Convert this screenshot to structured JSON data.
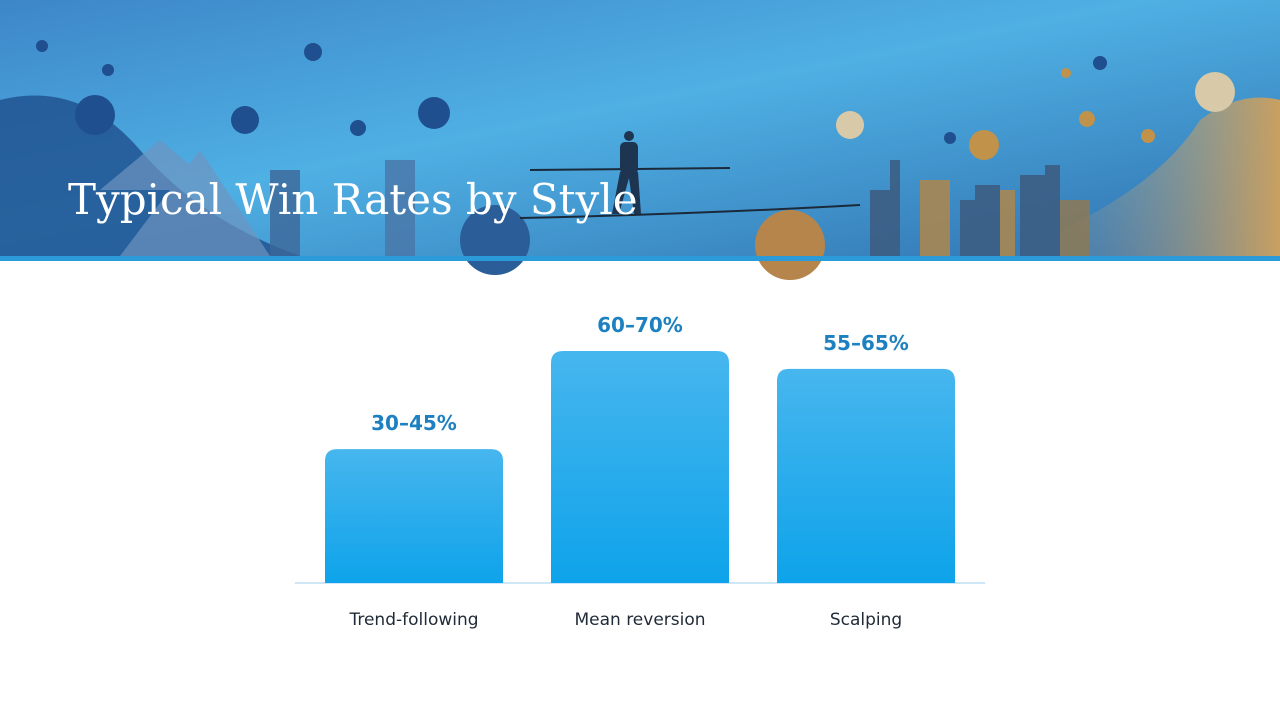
{
  "chart_data": {
    "type": "bar",
    "title": "Typical Win Rates by Style",
    "categories": [
      "Trend-following",
      "Mean reversion",
      "Scalping"
    ],
    "values": [
      37.5,
      65,
      60
    ],
    "value_labels": [
      "30–45%",
      "60–70%",
      "55–65%"
    ],
    "color": "#2aa9ec"
  }
}
